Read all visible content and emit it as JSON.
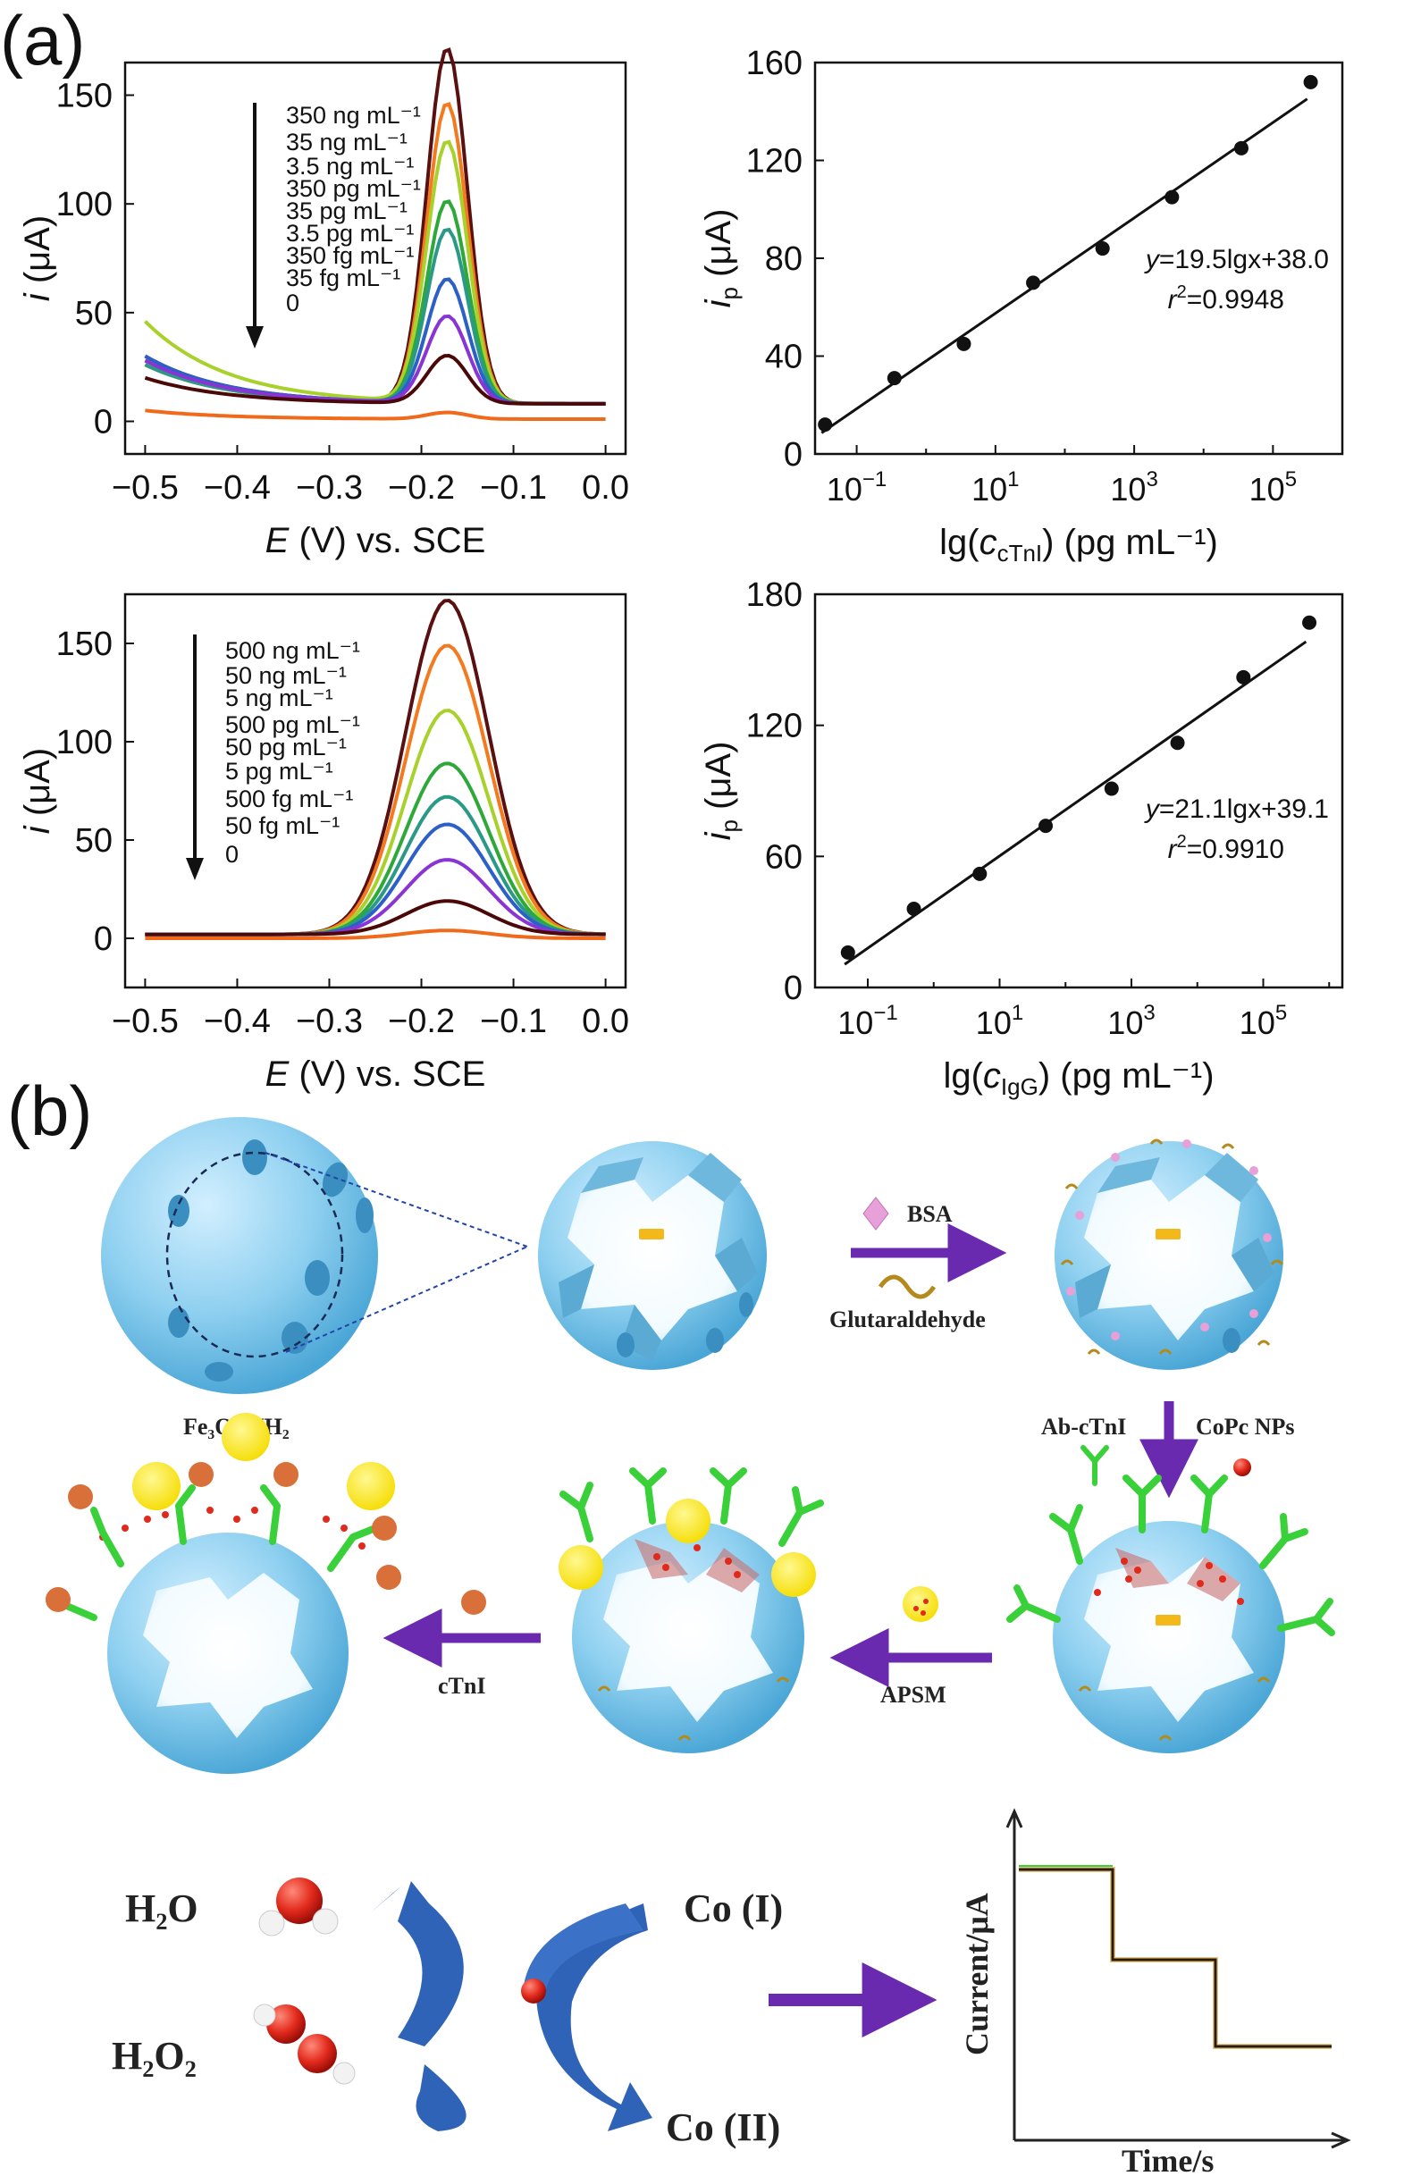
{
  "panel_labels": {
    "a": "(a)",
    "b": "(b)"
  },
  "chart_data": [
    {
      "type": "line",
      "xlabel_var": "E",
      "xlabel_rest": " (V) vs. SCE",
      "ylabel_var": "i",
      "ylabel_rest": " (μA)",
      "xlim": [
        -0.5,
        0.0
      ],
      "ylim": [
        -15,
        165
      ],
      "xticks": [
        "−0.5",
        "−0.4",
        "−0.3",
        "−0.2",
        "−0.1",
        "0.0"
      ],
      "yticks": [
        "0",
        "50",
        "100",
        "150"
      ],
      "legend": [
        "350 ng mL⁻¹",
        "35 ng mL⁻¹",
        "3.5 ng mL⁻¹",
        "350 pg mL⁻¹",
        "35 pg mL⁻¹",
        "3.5 pg mL⁻¹",
        "350 fg mL⁻¹",
        "35 fg mL⁻¹",
        "0"
      ],
      "series": [
        {
          "peak": 163,
          "color": "#5a1010"
        },
        {
          "peak": 138,
          "color": "#f47a20"
        },
        {
          "peak": 120,
          "color": "#a8d12c"
        },
        {
          "peak": 93,
          "color": "#2fa83a"
        },
        {
          "peak": 80,
          "color": "#2a9a86"
        },
        {
          "peak": 57,
          "color": "#2d5fc8"
        },
        {
          "peak": 40,
          "color": "#8a34d4"
        },
        {
          "peak": 22,
          "color": "#4a0808"
        },
        {
          "peak": 3,
          "color": "#f06a1c"
        }
      ]
    },
    {
      "type": "scatter",
      "xlabel": "lg(c",
      "xlabel_sub": "cTnI",
      "xlabel_tail": ") (pg mL⁻¹)",
      "ylabel_var": "i",
      "ylabel_sub": "p",
      "ylabel_rest": " (μA)",
      "xlim": [
        -1.6,
        6.0
      ],
      "ylim": [
        0,
        160
      ],
      "xticks": [
        {
          "v": -1,
          "base": "10",
          "exp": "−1"
        },
        {
          "v": 1,
          "base": "10",
          "exp": "1"
        },
        {
          "v": 3,
          "base": "10",
          "exp": "3"
        },
        {
          "v": 5,
          "base": "10",
          "exp": "5"
        }
      ],
      "yticks": [
        "0",
        "40",
        "80",
        "120",
        "160"
      ],
      "x": [
        -1.456,
        -0.456,
        0.544,
        1.544,
        2.544,
        3.544,
        4.544,
        5.544
      ],
      "y": [
        12,
        31,
        45,
        70,
        84,
        105,
        125,
        152
      ],
      "fit": {
        "slope": 19.5,
        "intercept": 38.0
      },
      "equation": "=19.5lgx+38.0",
      "equation_var": "y",
      "r2": "=0.9948",
      "r2_var": "r"
    },
    {
      "type": "line",
      "xlabel_var": "E",
      "xlabel_rest": " (V) vs. SCE",
      "ylabel_var": "i",
      "ylabel_rest": " (μA)",
      "xlim": [
        -0.5,
        0.0
      ],
      "ylim": [
        -25,
        175
      ],
      "xticks": [
        "−0.5",
        "−0.4",
        "−0.3",
        "−0.2",
        "−0.1",
        "0.0"
      ],
      "yticks": [
        "0",
        "50",
        "100",
        "150"
      ],
      "legend": [
        "500 ng mL⁻¹",
        "50 ng mL⁻¹",
        "5 ng mL⁻¹",
        "500 pg mL⁻¹",
        "50 pg mL⁻¹",
        "5 pg mL⁻¹",
        "500 fg mL⁻¹",
        "50 fg mL⁻¹",
        "0"
      ],
      "series": [
        {
          "peak": 170,
          "color": "#5a1010"
        },
        {
          "peak": 147,
          "color": "#f47a20"
        },
        {
          "peak": 114,
          "color": "#a8d12c"
        },
        {
          "peak": 87,
          "color": "#2fa83a"
        },
        {
          "peak": 70,
          "color": "#2a9a86"
        },
        {
          "peak": 56,
          "color": "#2d5fc8"
        },
        {
          "peak": 38,
          "color": "#8a34d4"
        },
        {
          "peak": 17,
          "color": "#4a0808"
        },
        {
          "peak": 4,
          "color": "#f06a1c"
        }
      ]
    },
    {
      "type": "scatter",
      "xlabel": "lg(c",
      "xlabel_sub": "IgG",
      "xlabel_tail": ") (pg mL⁻¹)",
      "ylabel_var": "i",
      "ylabel_sub": "p",
      "ylabel_rest": " (μA)",
      "xlim": [
        -1.8,
        6.2
      ],
      "ylim": [
        0,
        180
      ],
      "xticks": [
        {
          "v": -1,
          "base": "10",
          "exp": "−1"
        },
        {
          "v": 1,
          "base": "10",
          "exp": "1"
        },
        {
          "v": 3,
          "base": "10",
          "exp": "3"
        },
        {
          "v": 5,
          "base": "10",
          "exp": "5"
        }
      ],
      "yticks": [
        "0",
        "60",
        "120",
        "180"
      ],
      "x": [
        -1.301,
        -0.301,
        0.699,
        1.699,
        2.699,
        3.699,
        4.699,
        5.699
      ],
      "y": [
        16,
        36,
        52,
        74,
        91,
        112,
        142,
        167
      ],
      "fit": {
        "slope": 21.1,
        "intercept": 39.1
      },
      "equation": "=21.1lgx+39.1",
      "equation_var": "y",
      "r2": "=0.9910",
      "r2_var": "r"
    }
  ],
  "schematic": {
    "label_fe3o4": "Fe₃O₄-NH₂",
    "label_bsa": "BSA",
    "label_glutaraldehyde": "Glutaraldehyde",
    "label_ab": "Ab-cTnI",
    "label_copc": "CoPc NPs",
    "label_apsm": "APSM",
    "label_ctni": "cTnI",
    "label_h2o": "H₂O",
    "label_h2o2": "H₂O₂",
    "label_co1": "Co (I)",
    "label_co2": "Co (II)",
    "axis_y": "Current/μA",
    "axis_x": "Time/s"
  }
}
